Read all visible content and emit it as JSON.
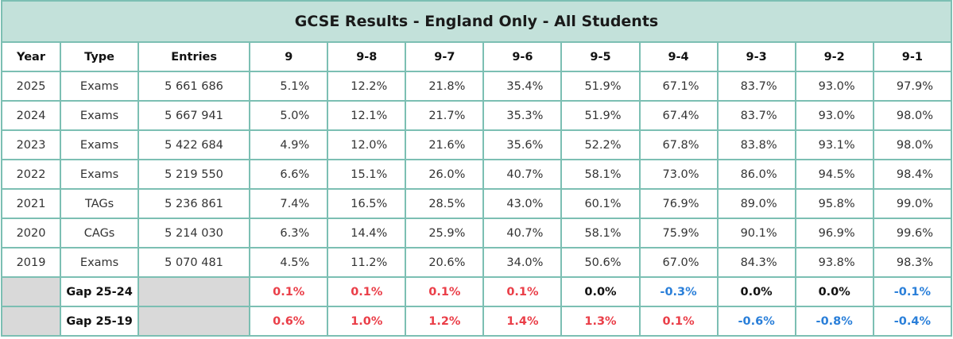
{
  "title": "GCSE Results - England Only - All Students",
  "columns": [
    "Year",
    "Type",
    "Entries",
    "9",
    "9-8",
    "9-7",
    "9-6",
    "9-5",
    "9-4",
    "9-3",
    "9-2",
    "9-1"
  ],
  "rows": [
    {
      "year": "2025",
      "type": "Exams",
      "entries": "5 661 686",
      "values": [
        "5.1%",
        "12.2%",
        "21.8%",
        "35.4%",
        "51.9%",
        "67.1%",
        "83.7%",
        "93.0%",
        "97.9%"
      ]
    },
    {
      "year": "2024",
      "type": "Exams",
      "entries": "5 667 941",
      "values": [
        "5.0%",
        "12.1%",
        "21.7%",
        "35.3%",
        "51.9%",
        "67.4%",
        "83.7%",
        "93.0%",
        "98.0%"
      ]
    },
    {
      "year": "2023",
      "type": "Exams",
      "entries": "5 422 684",
      "values": [
        "4.9%",
        "12.0%",
        "21.6%",
        "35.6%",
        "52.2%",
        "67.8%",
        "83.8%",
        "93.1%",
        "98.0%"
      ]
    },
    {
      "year": "2022",
      "type": "Exams",
      "entries": "5 219 550",
      "values": [
        "6.6%",
        "15.1%",
        "26.0%",
        "40.7%",
        "58.1%",
        "73.0%",
        "86.0%",
        "94.5%",
        "98.4%"
      ]
    },
    {
      "year": "2021",
      "type": "TAGs",
      "entries": "5 236 861",
      "values": [
        "7.4%",
        "16.5%",
        "28.5%",
        "43.0%",
        "60.1%",
        "76.9%",
        "89.0%",
        "95.8%",
        "99.0%"
      ]
    },
    {
      "year": "2020",
      "type": "CAGs",
      "entries": "5 214 030",
      "values": [
        "6.3%",
        "14.4%",
        "25.9%",
        "40.7%",
        "58.1%",
        "75.9%",
        "90.1%",
        "96.9%",
        "99.6%"
      ]
    },
    {
      "year": "2019",
      "type": "Exams",
      "entries": "5 070 481",
      "values": [
        "4.5%",
        "11.2%",
        "20.6%",
        "34.0%",
        "50.6%",
        "67.0%",
        "84.3%",
        "93.8%",
        "98.3%"
      ]
    }
  ],
  "gaps": [
    {
      "label": "Gap 25-24",
      "values": [
        "0.1%",
        "0.1%",
        "0.1%",
        "0.1%",
        "0.0%",
        "-0.3%",
        "0.0%",
        "0.0%",
        "-0.1%"
      ],
      "signs": [
        "pos",
        "pos",
        "pos",
        "pos",
        "zero",
        "neg",
        "zero",
        "zero",
        "neg"
      ]
    },
    {
      "label": "Gap 25-19",
      "values": [
        "0.6%",
        "1.0%",
        "1.2%",
        "1.4%",
        "1.3%",
        "0.1%",
        "-0.6%",
        "-0.8%",
        "-0.4%"
      ],
      "signs": [
        "pos",
        "pos",
        "pos",
        "pos",
        "pos",
        "pos",
        "neg",
        "neg",
        "neg"
      ]
    }
  ],
  "colors": {
    "header_bg": "#c3e1da",
    "border": "#7cbfb3",
    "positive": "#ea3e48",
    "negative": "#2a7fd9",
    "gap_shade": "#d9d9d9"
  }
}
